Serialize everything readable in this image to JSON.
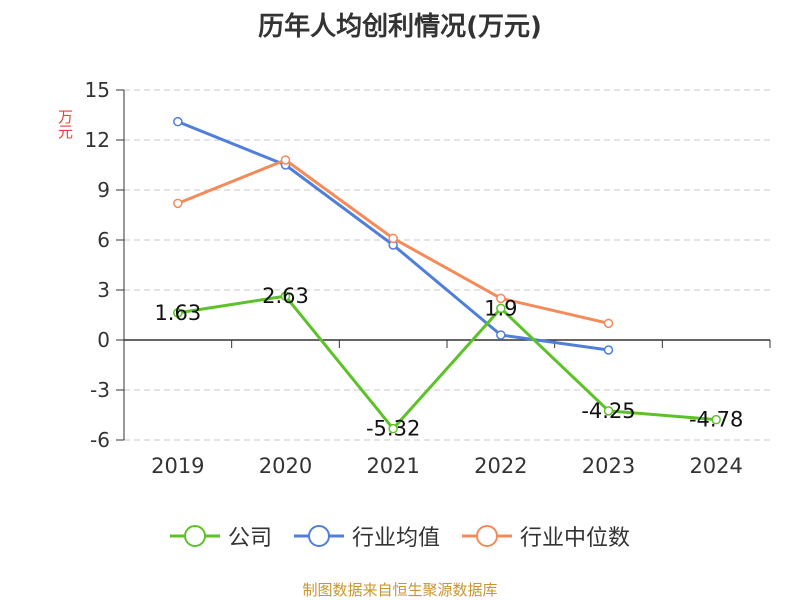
{
  "chart_data": {
    "type": "line",
    "title": "历年人均创利情况(万元)",
    "ylabel": "万元",
    "xlabel": "",
    "categories": [
      "2019",
      "2020",
      "2021",
      "2022",
      "2023",
      "2024"
    ],
    "ylim": [
      -6,
      15
    ],
    "yticks": [
      15,
      12,
      9,
      6,
      3,
      0,
      -3,
      -6
    ],
    "grid": true,
    "legend_position": "bottom",
    "series": [
      {
        "name": "公司",
        "color": "#5cc227",
        "values": [
          1.63,
          2.63,
          -5.32,
          1.9,
          -4.25,
          -4.78
        ],
        "labels": [
          "1.63",
          "2.63",
          "-5.32",
          "1.9",
          "-4.25",
          "-4.78"
        ]
      },
      {
        "name": "行业均值",
        "color": "#4f7fd9",
        "values": [
          13.1,
          10.5,
          5.7,
          0.3,
          -0.6,
          null
        ]
      },
      {
        "name": "行业中位数",
        "color": "#f48b5a",
        "values": [
          8.2,
          10.8,
          6.1,
          2.5,
          1.0,
          null
        ]
      }
    ]
  },
  "source_note": "制图数据来自恒生聚源数据库"
}
